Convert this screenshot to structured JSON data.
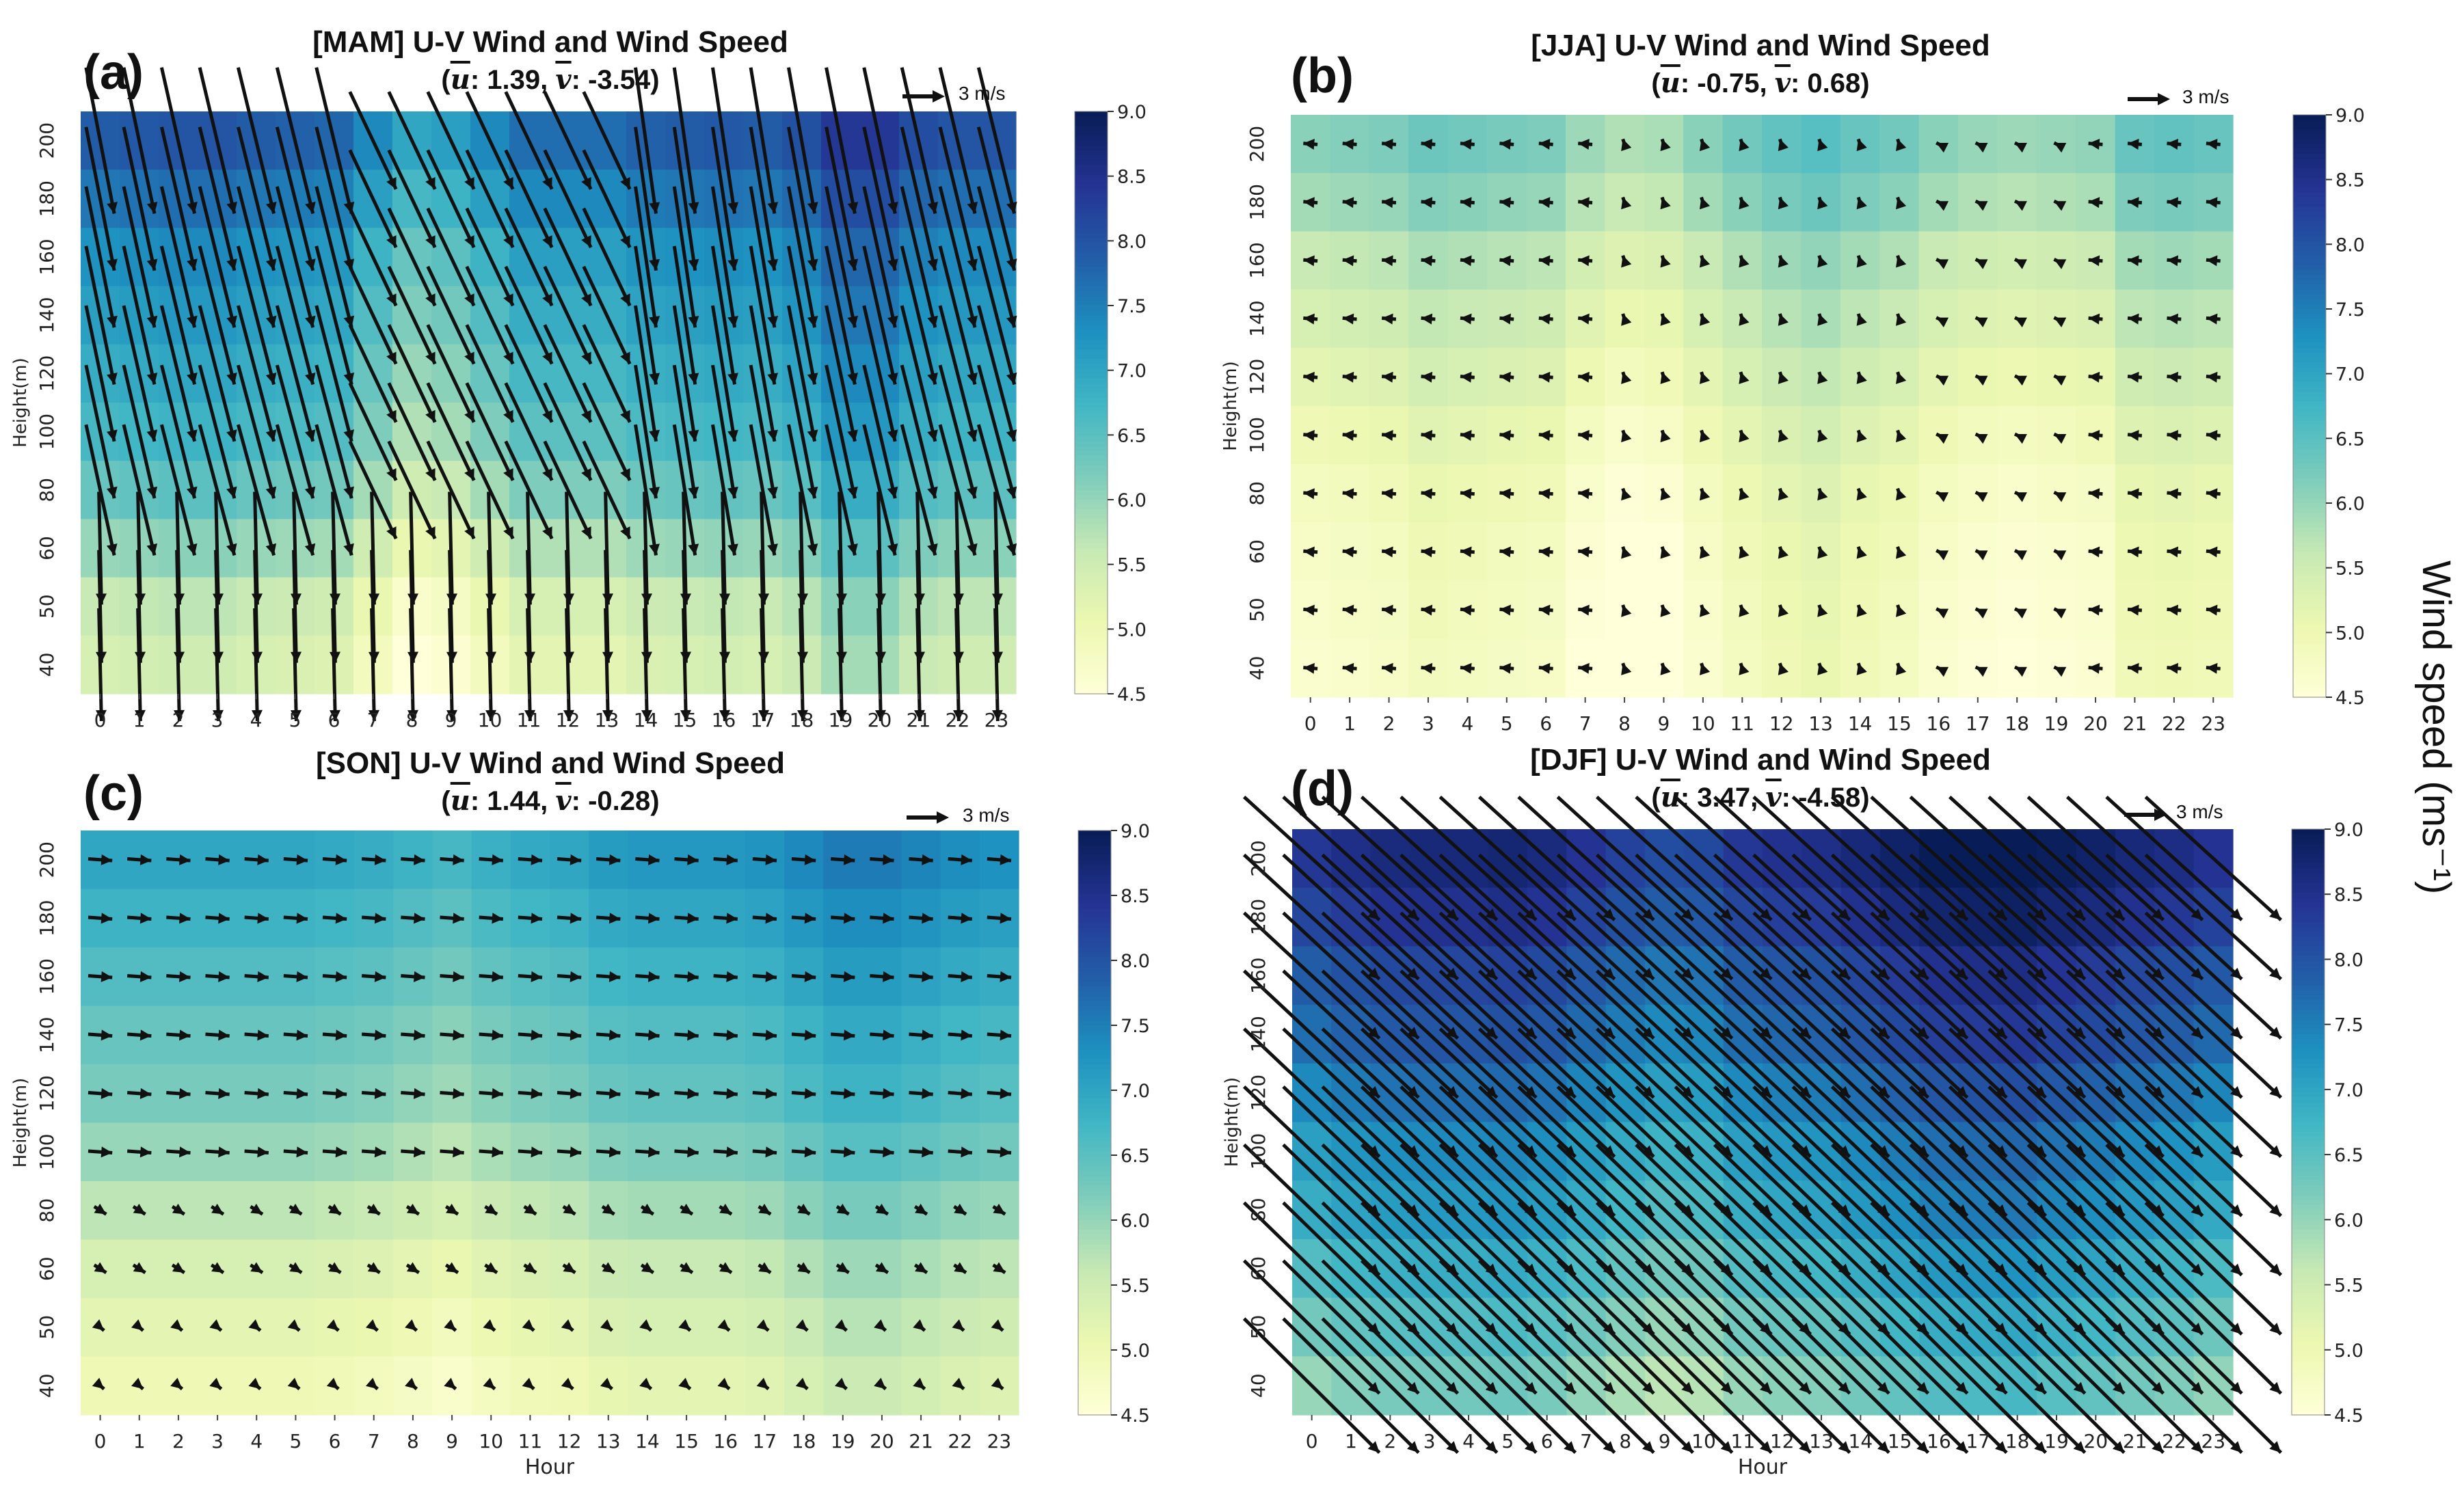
{
  "figure": {
    "colorbar_label": "Wind speed (ms⁻¹)"
  },
  "chart_data": [
    {
      "type": "heatmap",
      "panel": "(a)",
      "title": "[MAM] U-V Wind and Wind Speed",
      "subtitle_u": "1.39",
      "subtitle_v": "-3.54",
      "reference_arrow": "3 m/s",
      "xlabel": "",
      "ylabel": "Height(m)",
      "x": [
        "0",
        "1",
        "2",
        "3",
        "4",
        "5",
        "6",
        "7",
        "8",
        "9",
        "10",
        "11",
        "12",
        "13",
        "14",
        "15",
        "16",
        "17",
        "18",
        "19",
        "20",
        "21",
        "22",
        "23"
      ],
      "y": [
        "200",
        "180",
        "160",
        "140",
        "120",
        "100",
        "80",
        "60",
        "50",
        "40"
      ],
      "colorbar": {
        "min": 4.5,
        "max": 9.0,
        "ticks": [
          "9.0",
          "8.5",
          "8.0",
          "7.5",
          "7.0",
          "6.5",
          "6.0",
          "5.5",
          "5.0",
          "4.5"
        ]
      },
      "wind_speed_profile": [
        7.6,
        7.3,
        7.0,
        6.8,
        6.6,
        6.4,
        6.1,
        5.7,
        5.3,
        5.1
      ],
      "hourly_offset": [
        0.3,
        0.35,
        0.4,
        0.4,
        0.3,
        0.25,
        0.2,
        -0.2,
        -0.6,
        -0.5,
        -0.2,
        0.1,
        0.1,
        0.1,
        0.25,
        0.3,
        0.35,
        0.3,
        0.45,
        0.8,
        0.8,
        0.5,
        0.4,
        0.4
      ],
      "mean_u": 1.39,
      "mean_v": -3.54
    },
    {
      "type": "heatmap",
      "panel": "(b)",
      "title": "[JJA] U-V Wind and Wind Speed",
      "subtitle_u": "-0.75",
      "subtitle_v": "0.68",
      "reference_arrow": "3 m/s",
      "xlabel": "",
      "ylabel": "Height(m)",
      "x": [
        "0",
        "1",
        "2",
        "3",
        "4",
        "5",
        "6",
        "7",
        "8",
        "9",
        "10",
        "11",
        "12",
        "13",
        "14",
        "15",
        "16",
        "17",
        "18",
        "19",
        "20",
        "21",
        "22",
        "23"
      ],
      "y": [
        "200",
        "180",
        "160",
        "140",
        "120",
        "100",
        "80",
        "60",
        "50",
        "40"
      ],
      "colorbar": {
        "min": 4.5,
        "max": 9.0,
        "ticks": [
          "9.0",
          "8.5",
          "8.0",
          "7.5",
          "7.0",
          "6.5",
          "6.0",
          "5.5",
          "5.0",
          "4.5"
        ]
      },
      "wind_speed_profile": [
        6.1,
        5.9,
        5.6,
        5.4,
        5.2,
        5.0,
        4.85,
        4.75,
        4.7,
        4.65
      ],
      "hourly_offset": [
        0,
        0.05,
        0.1,
        0.25,
        0.2,
        0.15,
        0.1,
        -0.15,
        -0.3,
        -0.25,
        0,
        0.2,
        0.35,
        0.45,
        0.3,
        0.2,
        0,
        -0.1,
        -0.15,
        -0.1,
        -0.05,
        0.3,
        0.35,
        0.3
      ],
      "mean_u": -0.75,
      "mean_v": 0.68
    },
    {
      "type": "heatmap",
      "panel": "(c)",
      "title": "[SON] U-V Wind and Wind Speed",
      "subtitle_u": "1.44",
      "subtitle_v": "-0.28",
      "reference_arrow": "3 m/s",
      "xlabel": "Hour",
      "ylabel": "Height(m)",
      "x": [
        "0",
        "1",
        "2",
        "3",
        "4",
        "5",
        "6",
        "7",
        "8",
        "9",
        "10",
        "11",
        "12",
        "13",
        "14",
        "15",
        "16",
        "17",
        "18",
        "19",
        "20",
        "21",
        "22",
        "23"
      ],
      "y": [
        "200",
        "180",
        "160",
        "140",
        "120",
        "100",
        "80",
        "60",
        "50",
        "40"
      ],
      "colorbar": {
        "min": 4.5,
        "max": 9.0,
        "ticks": [
          "9.0",
          "8.5",
          "8.0",
          "7.5",
          "7.0",
          "6.5",
          "6.0",
          "5.5",
          "5.0",
          "4.5"
        ]
      },
      "wind_speed_profile": [
        7.0,
        6.8,
        6.6,
        6.4,
        6.25,
        6.0,
        5.7,
        5.4,
        5.2,
        5.0
      ],
      "hourly_offset": [
        0,
        0,
        0,
        0,
        0,
        0,
        -0.05,
        -0.1,
        -0.2,
        -0.3,
        -0.15,
        -0.05,
        0,
        0.15,
        0.2,
        0.2,
        0.2,
        0.25,
        0.4,
        0.55,
        0.55,
        0.45,
        0.35,
        0.3
      ],
      "mean_u": 1.44,
      "mean_v": -0.28
    },
    {
      "type": "heatmap",
      "panel": "(d)",
      "title": "[DJF] U-V Wind and Wind Speed",
      "subtitle_u": "3.47",
      "subtitle_v": "-4.58",
      "reference_arrow": "3 m/s",
      "xlabel": "Hour",
      "ylabel": "Height(m)",
      "x": [
        "0",
        "1",
        "2",
        "3",
        "4",
        "5",
        "6",
        "7",
        "8",
        "9",
        "10",
        "11",
        "12",
        "13",
        "14",
        "15",
        "16",
        "17",
        "18",
        "19",
        "20",
        "21",
        "22",
        "23"
      ],
      "y": [
        "200",
        "180",
        "160",
        "140",
        "120",
        "100",
        "80",
        "60",
        "50",
        "40"
      ],
      "colorbar": {
        "min": 4.5,
        "max": 9.0,
        "ticks": [
          "9.0",
          "8.5",
          "8.0",
          "7.5",
          "7.0",
          "6.5",
          "6.0",
          "5.5",
          "5.0",
          "4.5"
        ]
      },
      "wind_speed_profile": [
        8.4,
        8.2,
        7.9,
        7.7,
        7.4,
        7.1,
        6.9,
        6.6,
        6.3,
        6.0
      ],
      "hourly_offset": [
        0,
        0.15,
        0.25,
        0.3,
        0.3,
        0.35,
        0.25,
        0.05,
        -0.15,
        -0.3,
        -0.25,
        0,
        0.1,
        0.15,
        0.3,
        0.45,
        0.6,
        0.65,
        0.7,
        0.55,
        0.45,
        0.3,
        0.2,
        0.05
      ],
      "mean_u": 3.47,
      "mean_v": -4.58
    }
  ]
}
